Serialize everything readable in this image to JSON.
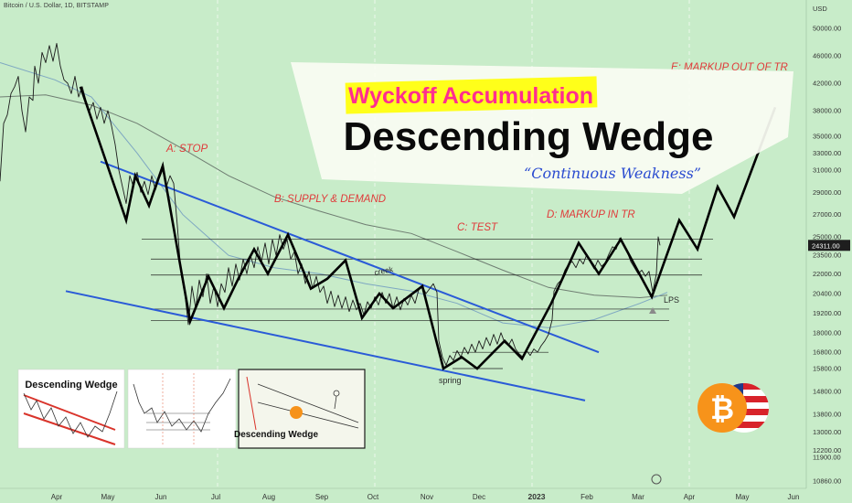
{
  "header": {
    "symbol_label": "Bitcoin / U.S. Dollar, 1D, BITSTAMP"
  },
  "chart_data": {
    "type": "line",
    "currency_label": "USD",
    "y_ticks": [
      10860,
      11900,
      12200,
      13000,
      13800,
      14800,
      15800,
      16800,
      18000,
      19200,
      20400,
      22000,
      23500,
      25000,
      27000,
      29000,
      31000,
      33000,
      35000,
      38000,
      42000,
      46000,
      50000
    ],
    "y_tick_labels": [
      "10860.00",
      "11900.00",
      "12200.00",
      "13000.00",
      "13800.00",
      "14800.00",
      "15800.00",
      "16800.00",
      "18000.00",
      "19200.00",
      "20400.00",
      "22000.00",
      "23500.00",
      "25000.00",
      "27000.00",
      "29000.00",
      "31000.00",
      "33000.00",
      "35000.00",
      "38000.00",
      "42000.00",
      "46000.00",
      "50000.00"
    ],
    "x_labels": [
      "Apr",
      "May",
      "Jun",
      "Jul",
      "Aug",
      "Sep",
      "Oct",
      "Nov",
      "Dec",
      "2023",
      "Feb",
      "Mar",
      "Apr",
      "May",
      "Jun"
    ],
    "bold_x_label": "2023",
    "current_price": 24311,
    "current_price_label": "24311.00",
    "price_series": [
      [
        0,
        30000
      ],
      [
        4,
        36500
      ],
      [
        8,
        37500
      ],
      [
        12,
        40500
      ],
      [
        16,
        41500
      ],
      [
        20,
        43000
      ],
      [
        24,
        38000
      ],
      [
        28,
        35500
      ],
      [
        32,
        40000
      ],
      [
        36,
        39500
      ],
      [
        38,
        44500
      ],
      [
        42,
        42000
      ],
      [
        46,
        46500
      ],
      [
        50,
        45000
      ],
      [
        54,
        47500
      ],
      [
        58,
        45200
      ],
      [
        62,
        47800
      ],
      [
        66,
        44500
      ],
      [
        70,
        42500
      ],
      [
        74,
        42000
      ],
      [
        78,
        40500
      ],
      [
        82,
        43000
      ],
      [
        86,
        40000
      ],
      [
        90,
        41500
      ],
      [
        94,
        39500
      ],
      [
        98,
        38000
      ],
      [
        102,
        39200
      ],
      [
        106,
        37000
      ],
      [
        110,
        38500
      ],
      [
        114,
        36500
      ],
      [
        118,
        38000
      ],
      [
        122,
        36200
      ],
      [
        126,
        34000
      ],
      [
        130,
        31000
      ],
      [
        134,
        29500
      ],
      [
        138,
        28000
      ],
      [
        142,
        30500
      ],
      [
        146,
        29500
      ],
      [
        150,
        30800
      ],
      [
        154,
        29000
      ],
      [
        158,
        30000
      ],
      [
        162,
        28800
      ],
      [
        166,
        30500
      ],
      [
        170,
        29200
      ],
      [
        174,
        30200
      ],
      [
        178,
        31000
      ],
      [
        182,
        29500
      ],
      [
        186,
        30500
      ],
      [
        190,
        29800
      ],
      [
        194,
        26000
      ],
      [
        198,
        22000
      ],
      [
        202,
        20500
      ],
      [
        206,
        18500
      ],
      [
        210,
        21000
      ],
      [
        214,
        19500
      ],
      [
        218,
        21500
      ],
      [
        222,
        20200
      ],
      [
        226,
        22000
      ],
      [
        230,
        19800
      ],
      [
        234,
        21000
      ],
      [
        238,
        19600
      ],
      [
        242,
        21200
      ],
      [
        246,
        20500
      ],
      [
        250,
        22500
      ],
      [
        254,
        21000
      ],
      [
        258,
        22800
      ],
      [
        262,
        21500
      ],
      [
        266,
        23200
      ],
      [
        270,
        22000
      ],
      [
        274,
        23500
      ],
      [
        278,
        22500
      ],
      [
        282,
        24200
      ],
      [
        286,
        23000
      ],
      [
        290,
        24500
      ],
      [
        294,
        22800
      ],
      [
        298,
        24800
      ],
      [
        302,
        23500
      ],
      [
        306,
        25200
      ],
      [
        310,
        24000
      ],
      [
        314,
        24800
      ],
      [
        318,
        23200
      ],
      [
        322,
        23800
      ],
      [
        326,
        22000
      ],
      [
        330,
        22800
      ],
      [
        334,
        21200
      ],
      [
        338,
        22200
      ],
      [
        342,
        20800
      ],
      [
        346,
        21800
      ],
      [
        350,
        20500
      ],
      [
        354,
        21000
      ],
      [
        358,
        19800
      ],
      [
        362,
        20600
      ],
      [
        366,
        19600
      ],
      [
        370,
        20300
      ],
      [
        374,
        19500
      ],
      [
        378,
        20200
      ],
      [
        382,
        19300
      ],
      [
        386,
        20000
      ],
      [
        390,
        19400
      ],
      [
        394,
        19800
      ],
      [
        398,
        19100
      ],
      [
        402,
        19900
      ],
      [
        406,
        19500
      ],
      [
        410,
        20200
      ],
      [
        414,
        19700
      ],
      [
        418,
        20500
      ],
      [
        422,
        19800
      ],
      [
        426,
        20400
      ],
      [
        430,
        19500
      ],
      [
        434,
        20200
      ],
      [
        438,
        19400
      ],
      [
        442,
        20100
      ],
      [
        446,
        19700
      ],
      [
        450,
        20300
      ],
      [
        454,
        19800
      ],
      [
        458,
        20700
      ],
      [
        462,
        21000
      ],
      [
        466,
        20400
      ],
      [
        470,
        20800
      ],
      [
        474,
        21200
      ],
      [
        478,
        20500
      ],
      [
        480,
        17500
      ],
      [
        484,
        16500
      ],
      [
        488,
        16000
      ],
      [
        492,
        16600
      ],
      [
        496,
        16300
      ],
      [
        500,
        16900
      ],
      [
        504,
        16500
      ],
      [
        508,
        17100
      ],
      [
        512,
        16700
      ],
      [
        516,
        17300
      ],
      [
        520,
        16800
      ],
      [
        524,
        17500
      ],
      [
        528,
        17000
      ],
      [
        532,
        17700
      ],
      [
        536,
        17200
      ],
      [
        540,
        17900
      ],
      [
        544,
        17300
      ],
      [
        548,
        18000
      ],
      [
        552,
        17400
      ],
      [
        556,
        17200
      ],
      [
        560,
        17600
      ],
      [
        564,
        17000
      ],
      [
        568,
        16700
      ],
      [
        572,
        16500
      ],
      [
        576,
        16900
      ],
      [
        580,
        16600
      ],
      [
        584,
        17000
      ],
      [
        588,
        16800
      ],
      [
        592,
        17200
      ],
      [
        596,
        17500
      ],
      [
        600,
        17900
      ],
      [
        604,
        18800
      ],
      [
        606,
        20600
      ],
      [
        610,
        21200
      ],
      [
        614,
        21500
      ],
      [
        618,
        22300
      ],
      [
        622,
        22800
      ],
      [
        626,
        23000
      ],
      [
        630,
        22500
      ],
      [
        634,
        23200
      ],
      [
        638,
        22800
      ],
      [
        642,
        23600
      ],
      [
        646,
        22900
      ],
      [
        650,
        22400
      ],
      [
        654,
        23100
      ],
      [
        658,
        22600
      ],
      [
        662,
        22900
      ],
      [
        666,
        23600
      ],
      [
        670,
        24200
      ],
      [
        674,
        24000
      ],
      [
        678,
        24900
      ],
      [
        682,
        24300
      ],
      [
        686,
        23800
      ],
      [
        690,
        23000
      ],
      [
        694,
        22500
      ],
      [
        698,
        22000
      ],
      [
        702,
        22300
      ],
      [
        706,
        21800
      ],
      [
        710,
        22200
      ],
      [
        714,
        20500
      ],
      [
        718,
        22000
      ],
      [
        720,
        25000
      ],
      [
        722,
        24311
      ]
    ],
    "ma_long": [
      [
        0,
        40000
      ],
      [
        50,
        40300
      ],
      [
        100,
        38800
      ],
      [
        150,
        36500
      ],
      [
        200,
        33500
      ],
      [
        250,
        30500
      ],
      [
        300,
        28600
      ],
      [
        350,
        27300
      ],
      [
        400,
        26100
      ],
      [
        450,
        25300
      ],
      [
        500,
        23800
      ],
      [
        550,
        22300
      ],
      [
        600,
        20900
      ],
      [
        650,
        20300
      ],
      [
        700,
        20150
      ],
      [
        730,
        20300
      ]
    ],
    "ma_mid": [
      [
        0,
        45000
      ],
      [
        60,
        42500
      ],
      [
        100,
        40000
      ],
      [
        150,
        33000
      ],
      [
        200,
        27000
      ],
      [
        250,
        23500
      ],
      [
        300,
        22500
      ],
      [
        350,
        22000
      ],
      [
        400,
        21200
      ],
      [
        450,
        20600
      ],
      [
        500,
        19800
      ],
      [
        550,
        18600
      ],
      [
        600,
        18300
      ],
      [
        650,
        18800
      ],
      [
        700,
        19800
      ],
      [
        730,
        20500
      ]
    ],
    "wedge_upper": [
      [
        110,
        32000
      ],
      [
        655,
        16800
      ]
    ],
    "wedge_lower": [
      [
        72,
        20600
      ],
      [
        640,
        14400
      ]
    ],
    "horizontal_levels": [
      24800,
      23200,
      21900,
      19450,
      18750
    ],
    "spring_range": {
      "x": [
        495,
        600
      ],
      "y": [
        15800,
        16800
      ]
    },
    "path_series": [
      [
        88,
        41500
      ],
      [
        138,
        26500
      ],
      [
        148,
        30500
      ],
      [
        163,
        27800
      ],
      [
        178,
        31500
      ],
      [
        208,
        18700
      ],
      [
        228,
        21800
      ],
      [
        245,
        19500
      ],
      [
        262,
        21800
      ],
      [
        278,
        24000
      ],
      [
        293,
        22000
      ],
      [
        315,
        25200
      ],
      [
        340,
        20800
      ],
      [
        358,
        21600
      ],
      [
        378,
        23100
      ],
      [
        396,
        18900
      ],
      [
        415,
        20400
      ],
      [
        430,
        19500
      ],
      [
        462,
        21000
      ],
      [
        485,
        15800
      ],
      [
        505,
        16500
      ],
      [
        522,
        15800
      ],
      [
        552,
        17500
      ],
      [
        571,
        16400
      ],
      [
        603,
        19800
      ],
      [
        633,
        24500
      ],
      [
        655,
        22000
      ],
      [
        679,
        24800
      ],
      [
        713,
        20200
      ],
      [
        743,
        26500
      ],
      [
        763,
        24000
      ],
      [
        785,
        29500
      ],
      [
        803,
        26800
      ],
      [
        848,
        38500
      ]
    ],
    "annotations": {
      "stop": "A: STOP",
      "supply_demand": "B: SUPPLY & DEMAND",
      "test": "C: TEST",
      "markup_in_tr": "D: MARKUP IN TR",
      "markup_out_of_tr": "E: MARKUP OUT OF TR",
      "creek": "creek",
      "spring": "spring",
      "lps": "LPS"
    },
    "title_banner": {
      "subtitle": "Wyckoff Accumulation",
      "title": "Descending Wedge",
      "tagline": "“Continuous Weakness”"
    },
    "thumbnails": {
      "t1_title": "Descending Wedge",
      "t3_title": "Descending Wedge"
    },
    "colors": {
      "background": "#c8ecc9",
      "price": "#1b1b1b",
      "path": "#000000",
      "wedge": "#2a5bd7",
      "annotation": "#e03a3a",
      "highlight": "#ff2d8f",
      "ma_long": "#6f7d72",
      "ma_mid": "#7ea7c2"
    }
  }
}
